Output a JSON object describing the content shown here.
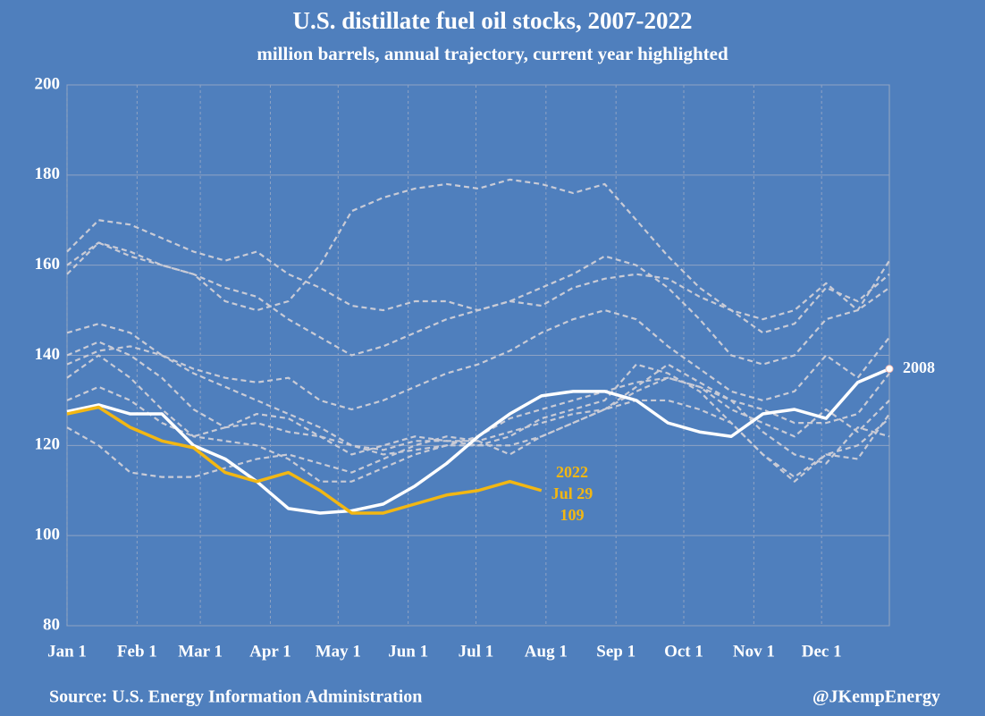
{
  "chart_data": {
    "type": "line",
    "title": "U.S. distillate fuel oil stocks, 2007-2022",
    "subtitle": "million barrels, annual trajectory, current year highlighted",
    "source": "Source: U.S. Energy Information Administration",
    "credit": "@JKempEnergy",
    "background": "#4f7fbd",
    "grid": true,
    "xlim": [
      1,
      365
    ],
    "xticks": [
      {
        "value": 1,
        "label": "Jan 1"
      },
      {
        "value": 32,
        "label": "Feb 1"
      },
      {
        "value": 60,
        "label": "Mar 1"
      },
      {
        "value": 91,
        "label": "Apr 1"
      },
      {
        "value": 121,
        "label": "May 1"
      },
      {
        "value": 152,
        "label": "Jun 1"
      },
      {
        "value": 182,
        "label": "Jul 1"
      },
      {
        "value": 213,
        "label": "Aug 1"
      },
      {
        "value": 244,
        "label": "Sep 1"
      },
      {
        "value": 274,
        "label": "Oct 1"
      },
      {
        "value": 305,
        "label": "Nov 1"
      },
      {
        "value": 335,
        "label": "Dec 1"
      }
    ],
    "ylim": [
      80,
      200
    ],
    "yticks": [
      80,
      100,
      120,
      140,
      160,
      180,
      200
    ],
    "x": [
      1,
      15,
      29,
      43,
      57,
      71,
      85,
      99,
      113,
      127,
      141,
      155,
      169,
      183,
      197,
      211,
      225,
      239,
      253,
      267,
      281,
      295,
      309,
      323,
      337,
      351,
      365
    ],
    "series": [
      {
        "color": "#c9cbd6",
        "dashed": true,
        "values": [
          160,
          165,
          163,
          160,
          158,
          152,
          150,
          152,
          160,
          172,
          175,
          177,
          178,
          177,
          179,
          178,
          176,
          178,
          170,
          162,
          155,
          150,
          145,
          147,
          155,
          152,
          158
        ]
      },
      {
        "color": "#c9cbd6",
        "dashed": true,
        "values": [
          163,
          170,
          169,
          166,
          163,
          161,
          163,
          158,
          155,
          151,
          150,
          152,
          152,
          150,
          152,
          151,
          155,
          157,
          158,
          157,
          153,
          150,
          148,
          150,
          156,
          150,
          161
        ]
      },
      {
        "color": "#c9cbd6",
        "dashed": true,
        "values": [
          158,
          165,
          162,
          160,
          158,
          155,
          153,
          148,
          144,
          140,
          142,
          145,
          148,
          150,
          152,
          155,
          158,
          162,
          160,
          155,
          148,
          140,
          138,
          140,
          148,
          150,
          155
        ]
      },
      {
        "color": "#c9cbd6",
        "dashed": true,
        "values": [
          145,
          147,
          145,
          140,
          137,
          135,
          134,
          135,
          130,
          128,
          130,
          133,
          136,
          138,
          141,
          145,
          148,
          150,
          148,
          142,
          137,
          132,
          130,
          132,
          140,
          135,
          144
        ]
      },
      {
        "color": "#c9cbd6",
        "dashed": true,
        "values": [
          140,
          143,
          140,
          135,
          128,
          124,
          125,
          123,
          122,
          120,
          119,
          121,
          121,
          120,
          120,
          122,
          125,
          128,
          132,
          135,
          133,
          128,
          125,
          122,
          128,
          123,
          130
        ]
      },
      {
        "color": "#c9cbd6",
        "dashed": true,
        "values": [
          135,
          140,
          135,
          128,
          122,
          121,
          120,
          117,
          112,
          112,
          115,
          118,
          120,
          120,
          122,
          126,
          128,
          130,
          138,
          136,
          132,
          125,
          118,
          113,
          118,
          117,
          127
        ]
      },
      {
        "color": "#c9cbd6",
        "dashed": true,
        "values": [
          124,
          120,
          114,
          113,
          113,
          115,
          117,
          118,
          116,
          114,
          117,
          120,
          122,
          121,
          118,
          122,
          125,
          128,
          130,
          130,
          128,
          125,
          118,
          112,
          118,
          120,
          126
        ]
      },
      {
        "color": "#c9cbd6",
        "dashed": true,
        "values": [
          130,
          133,
          130,
          125,
          122,
          124,
          127,
          126,
          122,
          118,
          120,
          122,
          121,
          121,
          123,
          125,
          127,
          128,
          133,
          138,
          134,
          130,
          123,
          118,
          116,
          124,
          122
        ]
      },
      {
        "color": "#c9cbd6",
        "dashed": true,
        "values": [
          138,
          141,
          142,
          140,
          136,
          133,
          130,
          127,
          124,
          120,
          118,
          119,
          120,
          122,
          126,
          128,
          130,
          132,
          134,
          135,
          133,
          130,
          128,
          125,
          125,
          127,
          136
        ]
      },
      {
        "color": "#ffffff",
        "dashed": false,
        "end_marker": true,
        "values": [
          127.5,
          129,
          127,
          127,
          120,
          117,
          112,
          106,
          105,
          105.5,
          107,
          111,
          116,
          122,
          127,
          131,
          132,
          132,
          130,
          125,
          123,
          122,
          127,
          128,
          126,
          134,
          137
        ]
      },
      {
        "color": "#f2b713",
        "dashed": false,
        "values": [
          127,
          128.5,
          124,
          121,
          119.5,
          114,
          112,
          114,
          110,
          105,
          105,
          107,
          109,
          110,
          112,
          110,
          null,
          null,
          null,
          null,
          null,
          null,
          null,
          null,
          null,
          null,
          null
        ]
      }
    ],
    "annotations": [
      {
        "text": "2008",
        "color": "#ffffff"
      },
      {
        "text": "2022",
        "color": "#f2b713"
      },
      {
        "text": "Jul 29",
        "color": "#f2b713"
      },
      {
        "text": "109",
        "color": "#f2b713"
      }
    ]
  }
}
